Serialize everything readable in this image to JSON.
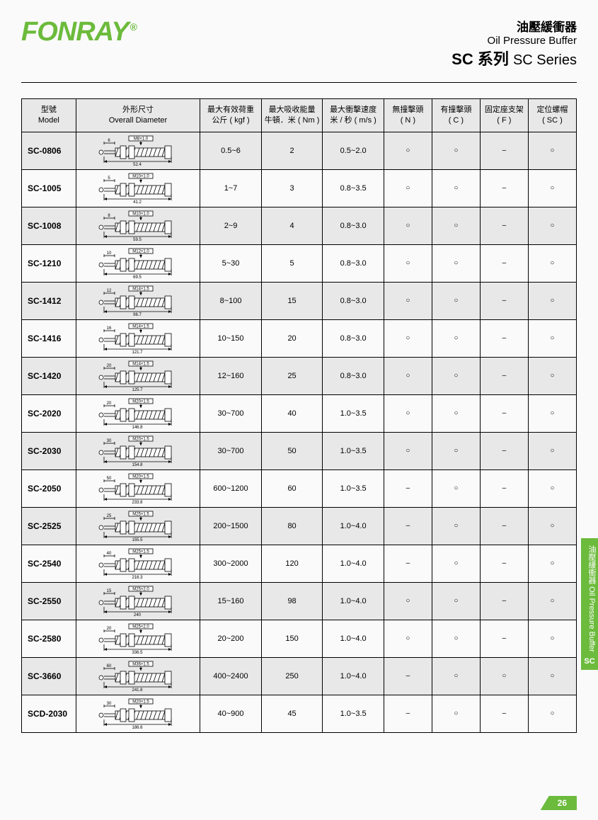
{
  "brand": "FONRAY",
  "brand_symbol": "®",
  "brand_color": "#6cbb3c",
  "header": {
    "cn1": "油壓緩衝器",
    "en1": "Oil Pressure Buffer",
    "series_cn": "SC 系列",
    "series_en": "SC Series"
  },
  "side_tab": {
    "cn": "油壓緩衝器",
    "en": "Oil Pressure Buffer",
    "code": "SC"
  },
  "page_number": "26",
  "table": {
    "columns": [
      {
        "cn": "型號",
        "en": "Model"
      },
      {
        "cn": "外形尺寸",
        "en": "Overall Diameter"
      },
      {
        "cn": "最大有效荷重",
        "en": "公斤 ( kgf )"
      },
      {
        "cn": "最大吸收能量",
        "en": "牛頓．米 ( Nm )"
      },
      {
        "cn": "最大衝擊速度",
        "en": "米 / 秒 ( m/s )"
      },
      {
        "cn": "無撞擊頭",
        "en": "( N )"
      },
      {
        "cn": "有撞擊頭",
        "en": "( C )"
      },
      {
        "cn": "固定座支架",
        "en": "( F )"
      },
      {
        "cn": "定位螺帽",
        "en": "( SC )"
      }
    ],
    "rows": [
      {
        "model": "SC-0806",
        "thread": "M8×1.0",
        "stroke": "6",
        "length": "52.4",
        "kgf": "0.5~6",
        "nm": "2",
        "ms": "0.5~2.0",
        "n": "○",
        "c": "○",
        "f": "–",
        "sc": "○"
      },
      {
        "model": "SC-1005",
        "thread": "M10×1.0",
        "stroke": "5",
        "length": "41.2",
        "kgf": "1~7",
        "nm": "3",
        "ms": "0.8~3.5",
        "n": "○",
        "c": "○",
        "f": "–",
        "sc": "○"
      },
      {
        "model": "SC-1008",
        "thread": "M10×1.0",
        "stroke": "8",
        "length": "59.5",
        "kgf": "2~9",
        "nm": "4",
        "ms": "0.8~3.0",
        "n": "○",
        "c": "○",
        "f": "–",
        "sc": "○"
      },
      {
        "model": "SC-1210",
        "thread": "M12×1.0",
        "stroke": "10",
        "length": "69.5",
        "kgf": "5~30",
        "nm": "5",
        "ms": "0.8~3.0",
        "n": "○",
        "c": "○",
        "f": "–",
        "sc": "○"
      },
      {
        "model": "SC-1412",
        "thread": "M14×1.5",
        "stroke": "12",
        "length": "98.7",
        "kgf": "8~100",
        "nm": "15",
        "ms": "0.8~3.0",
        "n": "○",
        "c": "○",
        "f": "–",
        "sc": "○"
      },
      {
        "model": "SC-1416",
        "thread": "M14×1.5",
        "stroke": "16",
        "length": "121.7",
        "kgf": "10~150",
        "nm": "20",
        "ms": "0.8~3.0",
        "n": "○",
        "c": "○",
        "f": "–",
        "sc": "○"
      },
      {
        "model": "SC-1420",
        "thread": "M14×1.5",
        "stroke": "20",
        "length": "125.7",
        "kgf": "12~160",
        "nm": "25",
        "ms": "0.8~3.0",
        "n": "○",
        "c": "○",
        "f": "–",
        "sc": "○"
      },
      {
        "model": "SC-2020",
        "thread": "M20×1.5",
        "stroke": "20",
        "length": "146.8",
        "kgf": "30~700",
        "nm": "40",
        "ms": "1.0~3.5",
        "n": "○",
        "c": "○",
        "f": "–",
        "sc": "○"
      },
      {
        "model": "SC-2030",
        "thread": "M20×1.5",
        "stroke": "30",
        "length": "154.8",
        "kgf": "30~700",
        "nm": "50",
        "ms": "1.0~3.5",
        "n": "○",
        "c": "○",
        "f": "–",
        "sc": "○"
      },
      {
        "model": "SC-2050",
        "thread": "M20×1.5",
        "stroke": "50",
        "length": "233.8",
        "kgf": "600~1200",
        "nm": "60",
        "ms": "1.0~3.5",
        "n": "–",
        "c": "○",
        "f": "–",
        "sc": "○"
      },
      {
        "model": "SC-2525",
        "thread": "M25×1.5",
        "stroke": "25",
        "length": "155.5",
        "kgf": "200~1500",
        "nm": "80",
        "ms": "1.0~4.0",
        "n": "–",
        "c": "○",
        "f": "–",
        "sc": "○"
      },
      {
        "model": "SC-2540",
        "thread": "M25×1.5",
        "stroke": "40",
        "length": "216.3",
        "kgf": "300~2000",
        "nm": "120",
        "ms": "1.0~4.0",
        "n": "–",
        "c": "○",
        "f": "–",
        "sc": "○"
      },
      {
        "model": "SC-2550",
        "thread": "M25×2.0",
        "stroke": "15",
        "length": "240",
        "kgf": "15~160",
        "nm": "98",
        "ms": "1.0~4.0",
        "n": "○",
        "c": "○",
        "f": "–",
        "sc": "○"
      },
      {
        "model": "SC-2580",
        "thread": "M25×2.0",
        "stroke": "20",
        "length": "336.5",
        "kgf": "20~200",
        "nm": "150",
        "ms": "1.0~4.0",
        "n": "○",
        "c": "○",
        "f": "–",
        "sc": "○"
      },
      {
        "model": "SC-3660",
        "thread": "M36×1.5",
        "stroke": "60",
        "length": "241.8",
        "kgf": "400~2400",
        "nm": "250",
        "ms": "1.0~4.0",
        "n": "–",
        "c": "○",
        "f": "○",
        "sc": "○"
      },
      {
        "model": "SCD-2030",
        "thread": "M20×1.5",
        "stroke": "30",
        "length": "186.6",
        "kgf": "40~900",
        "nm": "45",
        "ms": "1.0~3.5",
        "n": "–",
        "c": "○",
        "f": "–",
        "sc": "○"
      }
    ]
  },
  "style": {
    "header_bg": "#e8e8e8",
    "row_alt_bg": "#e8e8e8",
    "row_bg": "#fafafa",
    "border": "#000000",
    "text": "#000000",
    "font_size_cell": 11,
    "font_size_header": 11
  }
}
